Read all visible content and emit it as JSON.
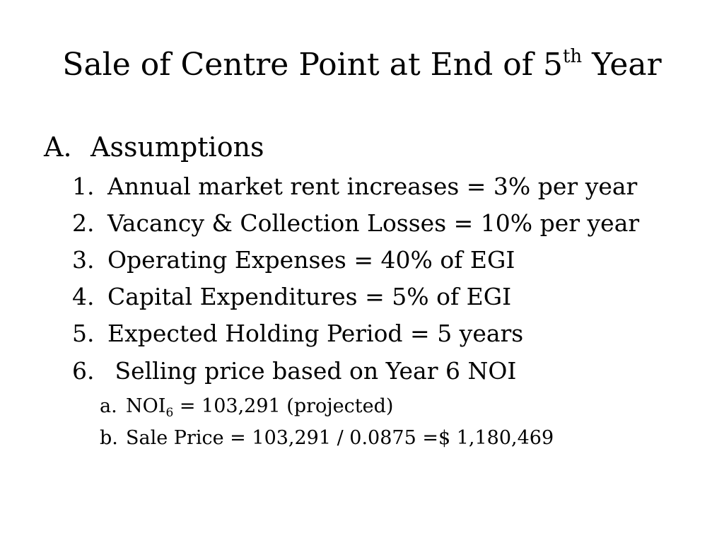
{
  "slide": {
    "title": {
      "main": "Sale of Centre Point at End of 5",
      "superscript": "th",
      "suffix": " Year"
    },
    "section": {
      "marker": "A.",
      "label": "Assumptions"
    },
    "items": [
      {
        "marker": "1.",
        "text": "Annual market rent increases = 3% per year"
      },
      {
        "marker": "2.",
        "text": "Vacancy & Collection Losses = 10% per year"
      },
      {
        "marker": "3.",
        "text": "Operating Expenses = 40% of EGI"
      },
      {
        "marker": "4.",
        "text": "Capital Expenditures = 5% of EGI"
      },
      {
        "marker": "5.",
        "text": "Expected Holding Period = 5 years"
      },
      {
        "marker": "6.",
        "text": " Selling price based on Year 6 NOI"
      }
    ],
    "subitems": [
      {
        "marker": "a.",
        "text_main": "NOI",
        "subscript": "6",
        "text_rest": " = 103,291 (projected)"
      },
      {
        "marker": "b.",
        "text": "Sale Price = 103,291 / 0.0875 =$ 1,180,469"
      }
    ]
  }
}
